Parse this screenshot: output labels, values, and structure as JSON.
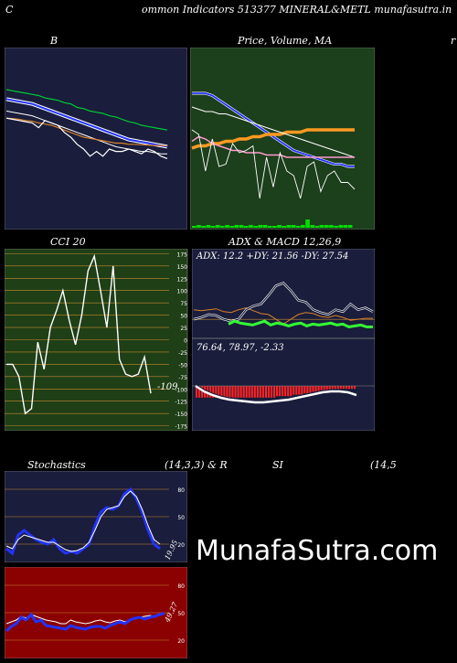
{
  "header": {
    "title": "ommon  Indicators 513377 MINERAL&METL  munafasutra.in",
    "left_letter": "C",
    "right_letter": "r",
    "bottom_letter": "C"
  },
  "panels": {
    "bb": {
      "label": "B"
    },
    "price": {
      "label": "Price,  Volume,  MA",
      "label_overlay": "Price,  Volume,  MA"
    },
    "cci": {
      "label": "CCI 20",
      "value_label": "-109"
    },
    "adx": {
      "label": "ADX  & MACD 12,26,9",
      "adx_text": "ADX: 12.2  +DY: 21.56  -DY: 27.54",
      "macd_text": "76.64,  78.97,  -2.33"
    },
    "stoch": {
      "label_left": "Stochastics",
      "label_mid": "(14,3,3) & R",
      "value_label": "19.95"
    },
    "rsi": {
      "label_mid": "SI",
      "label_right": "(14,5",
      "value_label": "49.27"
    }
  },
  "watermark": "MunafaSutra.com",
  "colors": {
    "navy": "#1a1d3b",
    "green_bg": "#1c3f1c",
    "cci_bg": "#1f3f17",
    "rsi_bg": "#8b0000",
    "grid_orange": "#c68a2e"
  },
  "chart_data": [
    {
      "type": "line",
      "title": "B",
      "series": [
        {
          "values": [
            100,
            99.5,
            99,
            98.5,
            98,
            97.5,
            96.5,
            96,
            95.5,
            94.5,
            94,
            92.5,
            92,
            91,
            90.5,
            90,
            89,
            88.5,
            87.5,
            86.5,
            86,
            85,
            84.5,
            84,
            83.5,
            83
          ]
        },
        {
          "values": [
            96,
            95.5,
            95,
            94.5,
            94,
            93,
            92,
            91,
            90,
            89,
            88,
            87,
            86,
            85,
            84,
            83,
            82,
            81,
            80,
            79,
            78.5,
            78,
            77.5,
            77,
            76.5,
            76
          ]
        },
        {
          "values": [
            91,
            90.5,
            90,
            89.5,
            89,
            88,
            87,
            86,
            85,
            84,
            83,
            82,
            81,
            80,
            79,
            78,
            77,
            76,
            75.5,
            75,
            74.5,
            74,
            74,
            73.5,
            73,
            73
          ]
        },
        {
          "values": [
            88,
            87.8,
            87.5,
            87,
            86.7,
            86,
            85.5,
            85,
            84,
            83,
            82,
            81,
            80,
            79.5,
            79,
            78.5,
            78,
            77.5,
            77.5,
            77,
            77,
            76.8,
            76.7,
            76.5,
            76.5,
            76.3
          ]
        },
        {
          "values": [
            88,
            87.5,
            87,
            86.5,
            86,
            84,
            87,
            86,
            85,
            82,
            80,
            77,
            75,
            72,
            74,
            72,
            75,
            74,
            74,
            75,
            74,
            73,
            75,
            74,
            72,
            71
          ]
        }
      ]
    },
    {
      "type": "line",
      "title": "Price,  Volume,  MA",
      "series": [
        {
          "values": [
            96,
            96,
            96,
            95,
            93,
            91,
            89,
            87,
            85,
            83,
            81,
            79,
            77,
            75,
            73,
            71,
            70,
            69,
            68,
            67,
            66,
            65,
            65,
            64,
            64
          ]
        },
        {
          "values": [
            72,
            73,
            73,
            74,
            74,
            75,
            75,
            76,
            76,
            77,
            77,
            78,
            78,
            78,
            79,
            79,
            79,
            80,
            80,
            80,
            80,
            80,
            80,
            80,
            80
          ]
        },
        {
          "values": [
            90,
            89,
            88,
            88,
            87,
            87,
            86,
            85,
            84,
            83,
            82,
            81,
            80,
            79,
            78,
            77,
            76,
            75,
            74,
            73,
            72,
            71,
            70,
            69,
            68
          ]
        },
        {
          "values": [
            75,
            77,
            76,
            74,
            73,
            72,
            71,
            71,
            70,
            70,
            70,
            69,
            69,
            69,
            68,
            68,
            68,
            68,
            68,
            68,
            68,
            68,
            68,
            68,
            68
          ]
        },
        {
          "values": [
            80,
            78,
            62,
            76,
            64,
            65,
            74,
            70,
            71,
            73,
            50,
            68,
            55,
            70,
            62,
            60,
            50,
            64,
            66,
            53,
            60,
            62,
            57,
            57,
            54
          ]
        }
      ],
      "volume": [
        2,
        3,
        2,
        3,
        2,
        3,
        2,
        3,
        2,
        3,
        3,
        2,
        3,
        2,
        3,
        3,
        2,
        2,
        3,
        2,
        3,
        3,
        2,
        3,
        9,
        3,
        2,
        3,
        3,
        3,
        2,
        3,
        3,
        3
      ]
    },
    {
      "type": "line",
      "title": "CCI 20",
      "yticks": [
        175,
        150,
        125,
        100,
        75,
        50,
        25,
        0,
        -25,
        -50,
        -75,
        -100,
        -125,
        -150,
        -175
      ],
      "ylim": [
        -185,
        185
      ],
      "series": [
        {
          "values": [
            -50,
            -50,
            -75,
            -150,
            -140,
            -5,
            -60,
            25,
            60,
            100,
            40,
            -10,
            50,
            140,
            170,
            100,
            25,
            150,
            -40,
            -70,
            -75,
            -70,
            -35,
            -109
          ]
        }
      ]
    },
    {
      "type": "line",
      "title": "ADX  & MACD 12,26,9",
      "adx": 12.2,
      "plus_dy": 21.56,
      "minus_dy": 27.54,
      "macd": 76.64,
      "signal": 78.97,
      "histogram": -2.33,
      "series": [
        {
          "values": [
            15,
            18,
            16,
            15,
            14,
            16,
            18,
            14,
            16,
            15,
            13,
            15,
            16,
            13,
            15,
            14,
            15,
            16,
            14,
            15,
            12,
            13,
            14,
            12,
            12
          ]
        },
        {
          "values": [
            30,
            29,
            30,
            31,
            28,
            27,
            30,
            32,
            29,
            26,
            25,
            20,
            15,
            20,
            25,
            27,
            26,
            23,
            22,
            24,
            22,
            19,
            20,
            21,
            21
          ]
        },
        {
          "values": [
            20,
            22,
            25,
            24,
            20,
            18,
            20,
            30,
            34,
            36,
            45,
            55,
            58,
            50,
            40,
            38,
            30,
            27,
            25,
            30,
            28,
            36,
            30,
            32,
            28
          ]
        }
      ],
      "histogram_values": [
        -8,
        -8,
        -8,
        -8,
        -8,
        -8,
        -8,
        -8,
        -8,
        -8,
        -8,
        -8,
        -8,
        -8,
        -8,
        -8,
        -8,
        -8,
        -8,
        -8,
        -8,
        -8,
        -8,
        -8,
        -8,
        -8,
        -8,
        -8,
        -8,
        -7,
        -7,
        -7,
        -7,
        -7,
        -7,
        -6,
        -6,
        -6,
        -6,
        -5,
        -5,
        -5,
        -4,
        -4,
        -4,
        -3,
        -3,
        -3,
        -3,
        -2,
        -2,
        -2,
        -2,
        -2,
        -2,
        -2,
        -2,
        -2
      ]
    },
    {
      "type": "line",
      "title": "Stochastics",
      "yticks": [
        80,
        50,
        20
      ],
      "ylim": [
        0,
        100
      ],
      "series": [
        {
          "values": [
            15,
            10,
            30,
            35,
            30,
            25,
            22,
            20,
            25,
            15,
            10,
            12,
            10,
            15,
            20,
            40,
            55,
            60,
            58,
            62,
            75,
            80,
            70,
            55,
            35,
            20,
            15
          ]
        },
        {
          "values": [
            18,
            15,
            25,
            30,
            28,
            26,
            24,
            22,
            22,
            18,
            14,
            12,
            13,
            16,
            22,
            35,
            50,
            58,
            60,
            62,
            72,
            78,
            72,
            58,
            40,
            25,
            19.95
          ]
        }
      ]
    },
    {
      "type": "line",
      "title": "SI",
      "yticks": [
        80,
        50,
        20
      ],
      "ylim": [
        0,
        100
      ],
      "series": [
        {
          "values": [
            38,
            40,
            42,
            46,
            44,
            48,
            46,
            44,
            42,
            41,
            40,
            38,
            38,
            42,
            40,
            39,
            38,
            39,
            41,
            42,
            40,
            39,
            41,
            42,
            40,
            42,
            43,
            45,
            46,
            47,
            46,
            48,
            49.27
          ]
        },
        {
          "values": [
            30,
            35,
            38,
            45,
            42,
            48,
            40,
            42,
            36,
            35,
            34,
            33,
            32,
            36,
            34,
            33,
            32,
            34,
            35,
            35,
            33,
            36,
            38,
            40,
            38,
            42,
            44,
            45,
            43,
            45,
            46,
            48,
            49.27
          ]
        }
      ]
    }
  ]
}
